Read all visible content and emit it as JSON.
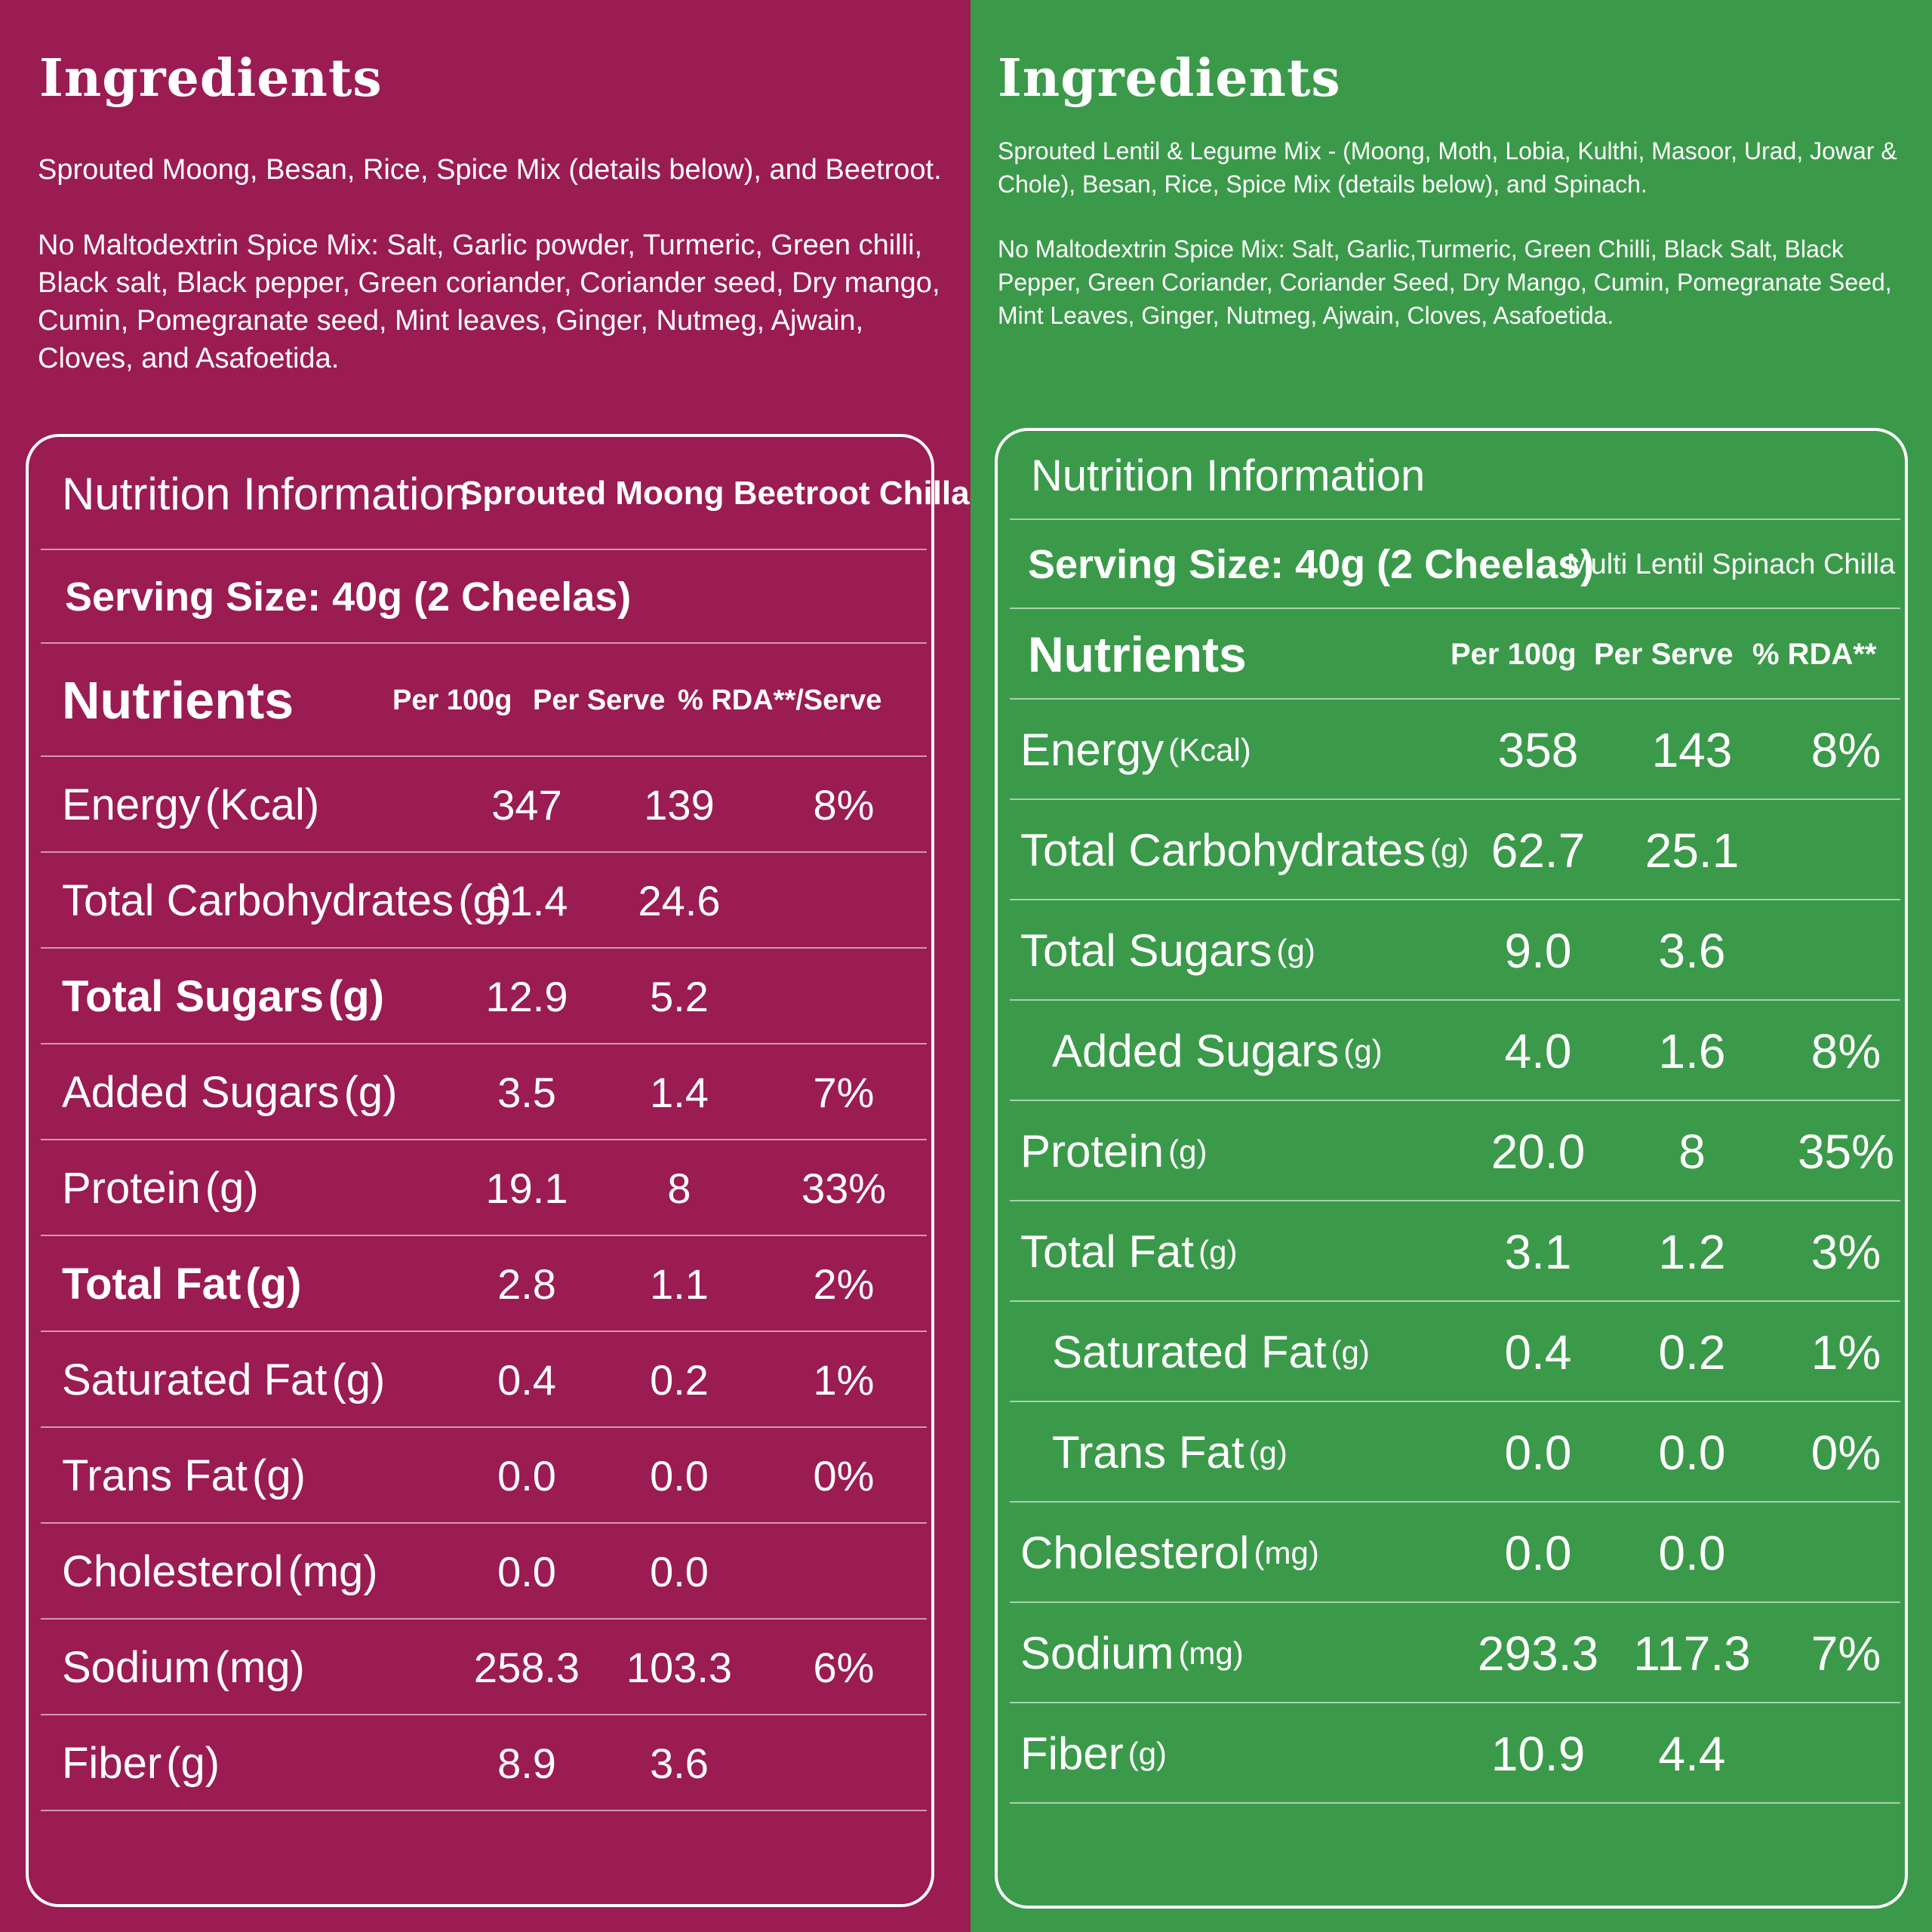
{
  "left": {
    "ingredients_title": "Ingredients",
    "ingredients_main": "Sprouted Moong, Besan, Rice, Spice Mix  (details below), and Beetroot.",
    "spice_mix": "No Maltodextrin Spice Mix: Salt, Garlic powder, Turmeric, Green chilli, Black salt, Black pepper, Green coriander, Coriander seed, Dry mango, Cumin, Pomegranate seed, Mint leaves, Ginger, Nutmeg, Ajwain, Cloves, and Asafoetida.",
    "nutrition_title": "Nutrition Information",
    "product_name": "Sprouted Moong Beetroot Chilla",
    "serving_size": "Serving Size: 40g (2 Cheelas)",
    "headers": {
      "nutrients": "Nutrients",
      "per100": "Per 100g",
      "perserve": "Per Serve",
      "rda": "% RDA**/Serve"
    },
    "rows": [
      {
        "name": "Energy",
        "unit": "(Kcal)",
        "per100": "347",
        "perserve": "139",
        "rda": "8%",
        "bold": false
      },
      {
        "name": "Total Carbohydrates",
        "unit": "(g)",
        "per100": "61.4",
        "perserve": "24.6",
        "rda": "",
        "bold": false
      },
      {
        "name": "Total Sugars",
        "unit": "(g)",
        "per100": "12.9",
        "perserve": "5.2",
        "rda": "",
        "bold": true
      },
      {
        "name": "Added Sugars",
        "unit": "(g)",
        "per100": "3.5",
        "perserve": "1.4",
        "rda": "7%",
        "bold": false
      },
      {
        "name": "Protein",
        "unit": "(g)",
        "per100": "19.1",
        "perserve": "8",
        "rda": "33%",
        "bold": false
      },
      {
        "name": "Total Fat",
        "unit": "(g)",
        "per100": "2.8",
        "perserve": "1.1",
        "rda": "2%",
        "bold": true
      },
      {
        "name": "Saturated Fat",
        "unit": "(g)",
        "per100": "0.4",
        "perserve": "0.2",
        "rda": "1%",
        "bold": false
      },
      {
        "name": "Trans Fat",
        "unit": "(g)",
        "per100": "0.0",
        "perserve": "0.0",
        "rda": "0%",
        "bold": false
      },
      {
        "name": "Cholesterol",
        "unit": "(mg)",
        "per100": "0.0",
        "perserve": "0.0",
        "rda": "",
        "bold": false
      },
      {
        "name": "Sodium",
        "unit": "(mg)",
        "per100": "258.3",
        "perserve": "103.3",
        "rda": "6%",
        "bold": false
      },
      {
        "name": "Fiber",
        "unit": "(g)",
        "per100": "8.9",
        "perserve": "3.6",
        "rda": "",
        "bold": false
      }
    ]
  },
  "right": {
    "ingredients_title": "Ingredients",
    "ingredients_main": "Sprouted Lentil & Legume Mix - (Moong, Moth, Lobia, Kulthi, Masoor, Urad, Jowar & Chole), Besan, Rice, Spice Mix (details below), and Spinach.",
    "spice_mix": "No Maltodextrin Spice Mix: Salt, Garlic,Turmeric, Green Chilli, Black Salt, Black Pepper, Green Coriander, Coriander Seed, Dry Mango, Cumin, Pomegranate Seed, Mint Leaves, Ginger, Nutmeg, Ajwain, Cloves, Asafoetida.",
    "nutrition_title": "Nutrition Information",
    "serving_size": "Serving Size: 40g (2 Cheelas)",
    "product_name": "Multi Lentil Spinach Chilla",
    "headers": {
      "nutrients": "Nutrients",
      "per100": "Per 100g",
      "perserve": "Per Serve",
      "rda": "% RDA**"
    },
    "rows": [
      {
        "name": "Energy",
        "unit": "(Kcal)",
        "per100": "358",
        "perserve": "143",
        "rda": "8%",
        "indent": false
      },
      {
        "name": "Total Carbohydrates",
        "unit": "(g)",
        "per100": "62.7",
        "perserve": "25.1",
        "rda": "",
        "indent": false
      },
      {
        "name": "Total Sugars",
        "unit": "(g)",
        "per100": "9.0",
        "perserve": "3.6",
        "rda": "",
        "indent": false
      },
      {
        "name": "Added Sugars",
        "unit": "(g)",
        "per100": "4.0",
        "perserve": "1.6",
        "rda": "8%",
        "indent": true
      },
      {
        "name": "Protein",
        "unit": "(g)",
        "per100": "20.0",
        "perserve": "8",
        "rda": "35%",
        "indent": false
      },
      {
        "name": "Total Fat",
        "unit": "(g)",
        "per100": "3.1",
        "perserve": "1.2",
        "rda": "3%",
        "indent": false
      },
      {
        "name": "Saturated Fat",
        "unit": "(g)",
        "per100": "0.4",
        "perserve": "0.2",
        "rda": "1%",
        "indent": true
      },
      {
        "name": "Trans Fat",
        "unit": "(g)",
        "per100": "0.0",
        "perserve": "0.0",
        "rda": "0%",
        "indent": true
      },
      {
        "name": "Cholesterol",
        "unit": "(mg)",
        "per100": "0.0",
        "perserve": "0.0",
        "rda": "",
        "indent": false
      },
      {
        "name": "Sodium",
        "unit": "(mg)",
        "per100": "293.3",
        "perserve": "117.3",
        "rda": "7%",
        "indent": false
      },
      {
        "name": "Fiber",
        "unit": "(g)",
        "per100": "10.9",
        "perserve": "4.4",
        "rda": "",
        "indent": false
      }
    ]
  }
}
